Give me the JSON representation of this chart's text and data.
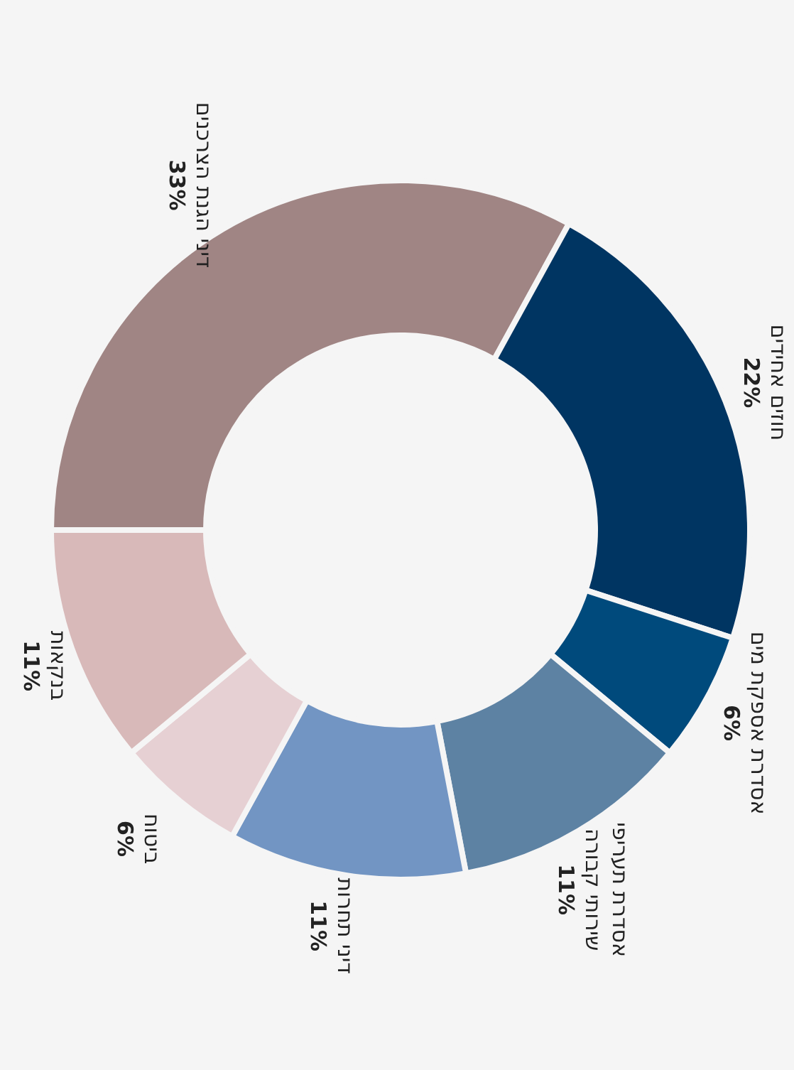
{
  "chart_data": {
    "type": "donut",
    "categories": [
      "דיני הגנת הצרכנים",
      "חוזים אחידים",
      "אסדרת אספקת מים",
      "אסדרת תעריפי שירותי קבורה",
      "דיני תחרות",
      "ביטוח",
      "בנקאות"
    ],
    "values": [
      33,
      22,
      6,
      11,
      11,
      6,
      11
    ],
    "value_labels": [
      "33%",
      "22%",
      "6%",
      "11%",
      "11%",
      "6%",
      "11%"
    ],
    "colors": [
      "#a08584",
      "#003562",
      "#004a7c",
      "#5d82a3",
      "#7295c3",
      "#e6d0d3",
      "#d8b9b9"
    ]
  }
}
